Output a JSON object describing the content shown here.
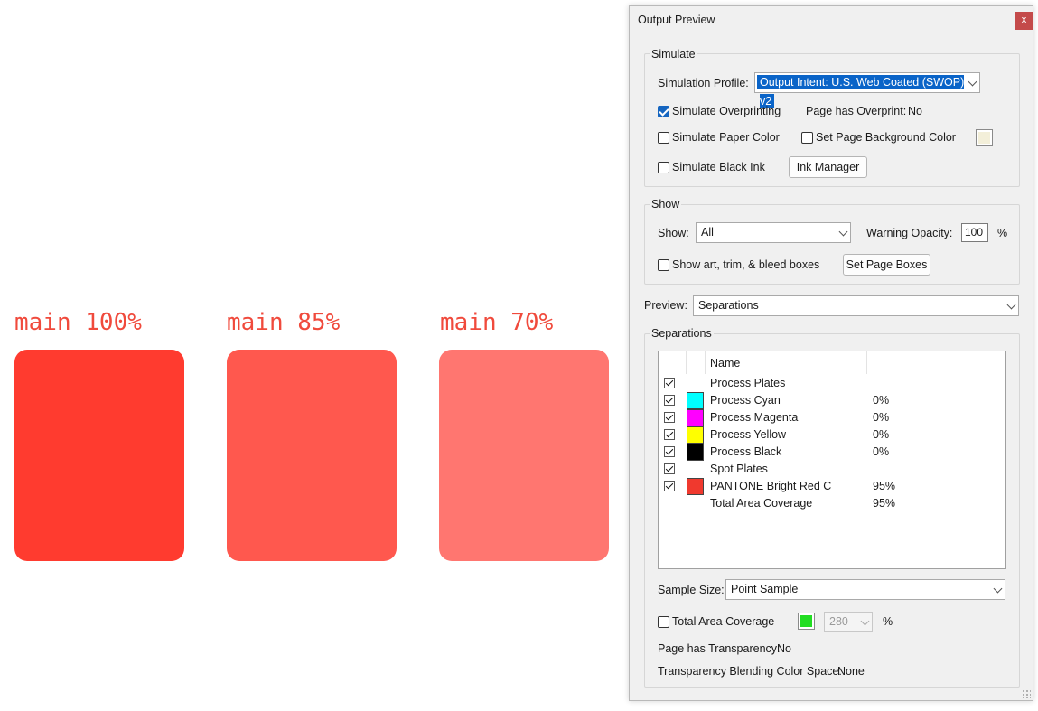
{
  "canvas": {
    "swatches": [
      {
        "label": "main 100%",
        "color": "#ff3b2f"
      },
      {
        "label": "main 85%",
        "color": "#ff584e"
      },
      {
        "label": "main 70%",
        "color": "#ff7670"
      }
    ]
  },
  "dialog": {
    "title": "Output Preview",
    "close_label": "x",
    "simulate": {
      "group_label": "Simulate",
      "profile_label": "Simulation Profile:",
      "profile_value": "Output Intent: U.S. Web Coated (SWOP) v2",
      "overprinting_label": "Simulate Overprinting",
      "overprinting_checked": true,
      "page_overprint_label": "Page has Overprint:",
      "page_overprint_value": "No",
      "paper_color_label": "Simulate Paper Color",
      "page_bg_label": "Set Page Background Color",
      "page_bg_color": "#f3efd9",
      "black_ink_label": "Simulate Black Ink",
      "ink_manager_label": "Ink Manager"
    },
    "show": {
      "group_label": "Show",
      "show_label": "Show:",
      "show_value": "All",
      "warning_opacity_label": "Warning Opacity:",
      "warning_opacity_value": "100",
      "percent": "%",
      "boxes_label": "Show art, trim, & bleed boxes",
      "set_page_boxes_label": "Set Page Boxes"
    },
    "preview": {
      "label": "Preview:",
      "value": "Separations"
    },
    "separations": {
      "group_label": "Separations",
      "column_name": "Name",
      "rows": [
        {
          "name": "Process Plates",
          "value": "",
          "color": ""
        },
        {
          "name": "Process Cyan",
          "value": "0%",
          "color": "#00ffff"
        },
        {
          "name": "Process Magenta",
          "value": "0%",
          "color": "#ff00ff"
        },
        {
          "name": "Process Yellow",
          "value": "0%",
          "color": "#ffff00"
        },
        {
          "name": "Process Black",
          "value": "0%",
          "color": "#000000"
        },
        {
          "name": "Spot Plates",
          "value": "",
          "color": ""
        },
        {
          "name": "PANTONE Bright Red C",
          "value": "95%",
          "color": "#f0392e"
        }
      ],
      "total": {
        "name": "Total Area Coverage",
        "value": "95%"
      }
    },
    "sample_size": {
      "label": "Sample Size:",
      "value": "Point Sample"
    },
    "total_area": {
      "label": "Total Area Coverage",
      "color": "#22dd22",
      "value": "280",
      "percent": "%"
    },
    "transparency": {
      "label": "Page has Transparency:",
      "value": "No"
    },
    "blending": {
      "label": "Transparency Blending Color Space:",
      "value": "None"
    }
  }
}
